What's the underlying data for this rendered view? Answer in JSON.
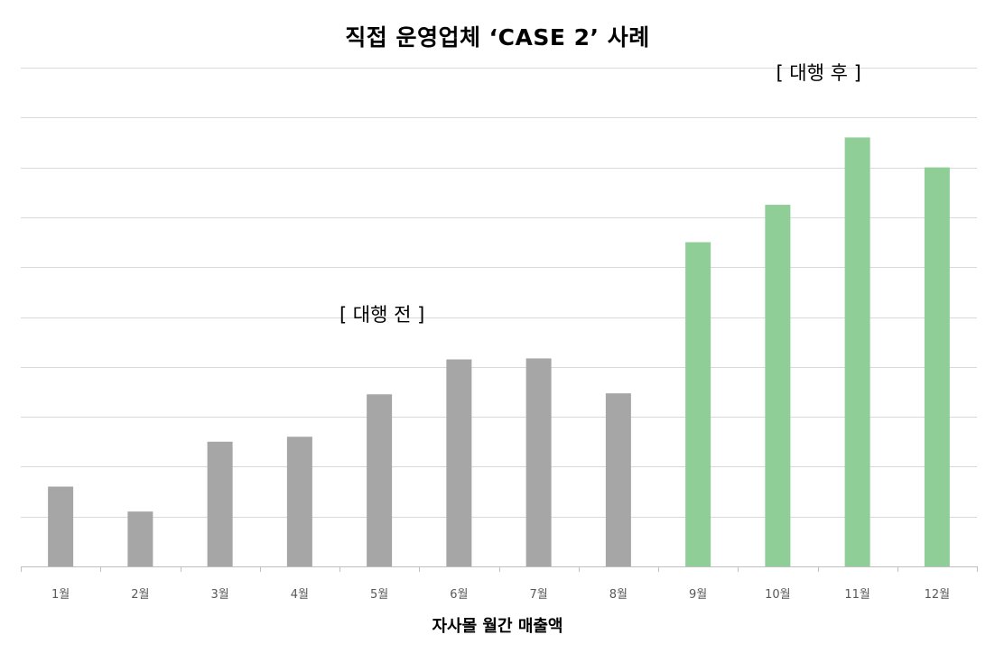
{
  "chart_data": {
    "type": "bar",
    "title": "직접 운영업체 ‘CASE 2’ 사례",
    "xlabel": "자사몰 월간 매출액",
    "ylabel": "",
    "categories": [
      "1월",
      "2월",
      "3월",
      "4월",
      "5월",
      "6월",
      "7월",
      "8월",
      "9월",
      "10월",
      "11월",
      "12월"
    ],
    "values": [
      1.6,
      1.1,
      2.5,
      2.6,
      3.45,
      4.15,
      4.17,
      3.47,
      6.5,
      7.25,
      8.6,
      8.0
    ],
    "ylim": [
      0,
      10
    ],
    "grid": true,
    "annotations": [
      {
        "text": "[ 대행 전 ]",
        "near": "5월~6월"
      },
      {
        "text": "[ 대행 후 ]",
        "near": "11월"
      }
    ],
    "colors": {
      "before": "#a6a6a6",
      "after": "#8fce97",
      "grid": "#d9d9d9",
      "axis": "#bfbfbf"
    },
    "before_count": 8
  }
}
